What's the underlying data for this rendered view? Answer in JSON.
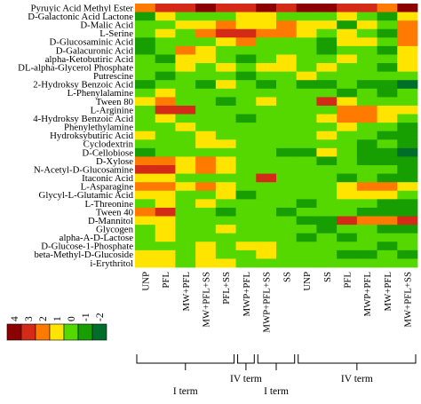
{
  "chart_data": {
    "type": "heatmap",
    "rows": [
      "Pyruyic Acid Methyl Ester",
      "D-Galactonic Acid Lactone",
      "D-Malic Acid",
      "L-Serine",
      "D-Glucosaminic Acid",
      "D-Galacuronic Acid",
      "alpha-Ketobutiric Acid",
      "DL-alpha-Glycerol Phosphate",
      "Putrescine",
      "2-Hydroksy Benzoic Acid",
      "L-Phenylalamine",
      "Tween 80",
      "L-Arginine",
      "4-Hydroksy Benzoic Acid",
      "Phenylethylamine",
      "Hydroksybutiric Acid",
      "Cyclodextrin",
      "D-Cellobiose",
      "D-Xylose",
      "N-Acetyl-D-Glucosamine",
      "Itaconic Acid",
      "L-Asparagine",
      "Glycyl-L-Glutamic Acid",
      "L-Threonine",
      "Tween 40",
      "D-Mannitol",
      "Glycogen",
      "alpha-A-D-Lactose",
      "D-Glucose-1-Phosphate",
      "beta-Methyl-D-Glucoside",
      "i-Erythritol"
    ],
    "columns": [
      "UNP",
      "PFL",
      "MW+PFL",
      "MW+PFL+SS",
      "PFL+SS",
      "MWP+PFL",
      "MWP+PFL+SS",
      "SS",
      "UNP",
      "SS",
      "PFL",
      "MWP+PFL",
      "MW+PFL",
      "MW+PFL+SS"
    ],
    "column_groups": [
      {
        "label": "I term",
        "start": 0,
        "end": 4
      },
      {
        "label": "IV term",
        "start": 5,
        "end": 5
      },
      {
        "label": "I term",
        "start": 6,
        "end": 7
      },
      {
        "label": "IV term",
        "start": 8,
        "end": 13
      }
    ],
    "values": [
      [
        2,
        3,
        3,
        4,
        3,
        3,
        4,
        3,
        4,
        4,
        3,
        3,
        2,
        4
      ],
      [
        -1,
        1,
        0,
        0,
        0,
        1,
        1,
        0,
        0,
        0,
        1,
        0,
        -1,
        1
      ],
      [
        0,
        0,
        1,
        1,
        2,
        1,
        1,
        2,
        1,
        1,
        -1,
        1,
        0,
        2
      ],
      [
        0,
        1,
        0,
        2,
        3,
        3,
        2,
        2,
        1,
        0,
        1,
        0,
        -1,
        2
      ],
      [
        -1,
        0,
        0,
        0,
        1,
        2,
        0,
        0,
        0,
        -1,
        1,
        1,
        0,
        2
      ],
      [
        -1,
        0,
        2,
        1,
        0,
        0,
        0,
        0,
        0,
        -1,
        0,
        0,
        -1,
        1
      ],
      [
        0,
        -1,
        1,
        1,
        0,
        -1,
        0,
        1,
        0,
        0,
        1,
        0,
        0,
        1
      ],
      [
        0,
        0,
        1,
        0,
        1,
        0,
        1,
        1,
        0,
        1,
        0,
        0,
        -1,
        1
      ],
      [
        0,
        -1,
        0,
        0,
        0,
        -1,
        0,
        0,
        1,
        0,
        0,
        0,
        0,
        0
      ],
      [
        -1,
        0,
        0,
        -1,
        1,
        0,
        -1,
        0,
        -1,
        -1,
        0,
        -1,
        -1,
        -2
      ],
      [
        0,
        1,
        0,
        0,
        0,
        0,
        0,
        0,
        0,
        0,
        -1,
        0,
        -1,
        0
      ],
      [
        1,
        2,
        0,
        0,
        -1,
        0,
        1,
        0,
        0,
        3,
        1,
        0,
        0,
        0
      ],
      [
        0,
        3,
        3,
        0,
        0,
        0,
        0,
        0,
        0,
        0,
        2,
        2,
        1,
        1
      ],
      [
        0,
        1,
        0,
        0,
        0,
        -1,
        0,
        0,
        0,
        1,
        2,
        2,
        1,
        0
      ],
      [
        0,
        0,
        1,
        0,
        0,
        0,
        0,
        0,
        0,
        0,
        1,
        0,
        0,
        -1
      ],
      [
        1,
        0,
        0,
        1,
        0,
        0,
        0,
        0,
        0,
        1,
        0,
        0,
        -1,
        -1
      ],
      [
        0,
        0,
        0,
        1,
        1,
        0,
        0,
        0,
        0,
        0,
        0,
        -1,
        0,
        -1
      ],
      [
        -1,
        0,
        0,
        0,
        0,
        0,
        0,
        -1,
        -1,
        1,
        0,
        -1,
        -1,
        -2
      ],
      [
        2,
        2,
        1,
        2,
        1,
        0,
        0,
        0,
        0,
        -1,
        0,
        -1,
        -1,
        -1
      ],
      [
        3,
        3,
        1,
        2,
        1,
        0,
        0,
        0,
        0,
        0,
        0,
        0,
        0,
        -1
      ],
      [
        1,
        1,
        0,
        0,
        0,
        0,
        3,
        0,
        0,
        0,
        -1,
        0,
        -1,
        -1
      ],
      [
        2,
        2,
        1,
        2,
        1,
        0,
        0,
        0,
        0,
        0,
        1,
        2,
        2,
        1
      ],
      [
        1,
        1,
        0,
        0,
        1,
        -1,
        0,
        0,
        0,
        0,
        1,
        1,
        1,
        0
      ],
      [
        0,
        1,
        0,
        1,
        0,
        0,
        0,
        0,
        -1,
        0,
        0,
        0,
        -1,
        -1
      ],
      [
        2,
        3,
        0,
        0,
        -1,
        0,
        0,
        -1,
        0,
        0,
        0,
        -1,
        -1,
        -1
      ],
      [
        1,
        1,
        0,
        0,
        0,
        0,
        0,
        0,
        -1,
        -1,
        3,
        2,
        2,
        3
      ],
      [
        0,
        1,
        0,
        0,
        1,
        0,
        0,
        0,
        0,
        -1,
        0,
        0,
        -1,
        -1
      ],
      [
        0,
        1,
        0,
        0,
        0,
        0,
        0,
        0,
        -1,
        0,
        -1,
        0,
        0,
        0
      ],
      [
        0,
        0,
        0,
        1,
        0,
        1,
        1,
        0,
        0,
        0,
        0,
        0,
        -1,
        0
      ],
      [
        1,
        1,
        0,
        1,
        0,
        0,
        1,
        0,
        0,
        0,
        -1,
        -1,
        0,
        -1
      ],
      [
        1,
        1,
        0,
        1,
        1,
        0,
        0,
        0,
        0,
        0,
        0,
        0,
        0,
        0
      ]
    ],
    "legend": {
      "values": [
        4,
        3,
        2,
        1,
        0,
        -1,
        -2
      ],
      "labels": [
        "4",
        "3",
        "2",
        "1",
        "0",
        "-1",
        "-2"
      ],
      "colors": [
        "#8b0000",
        "#d42a18",
        "#ff7a00",
        "#ffe400",
        "#55d700",
        "#179e00",
        "#006e2b"
      ]
    }
  }
}
